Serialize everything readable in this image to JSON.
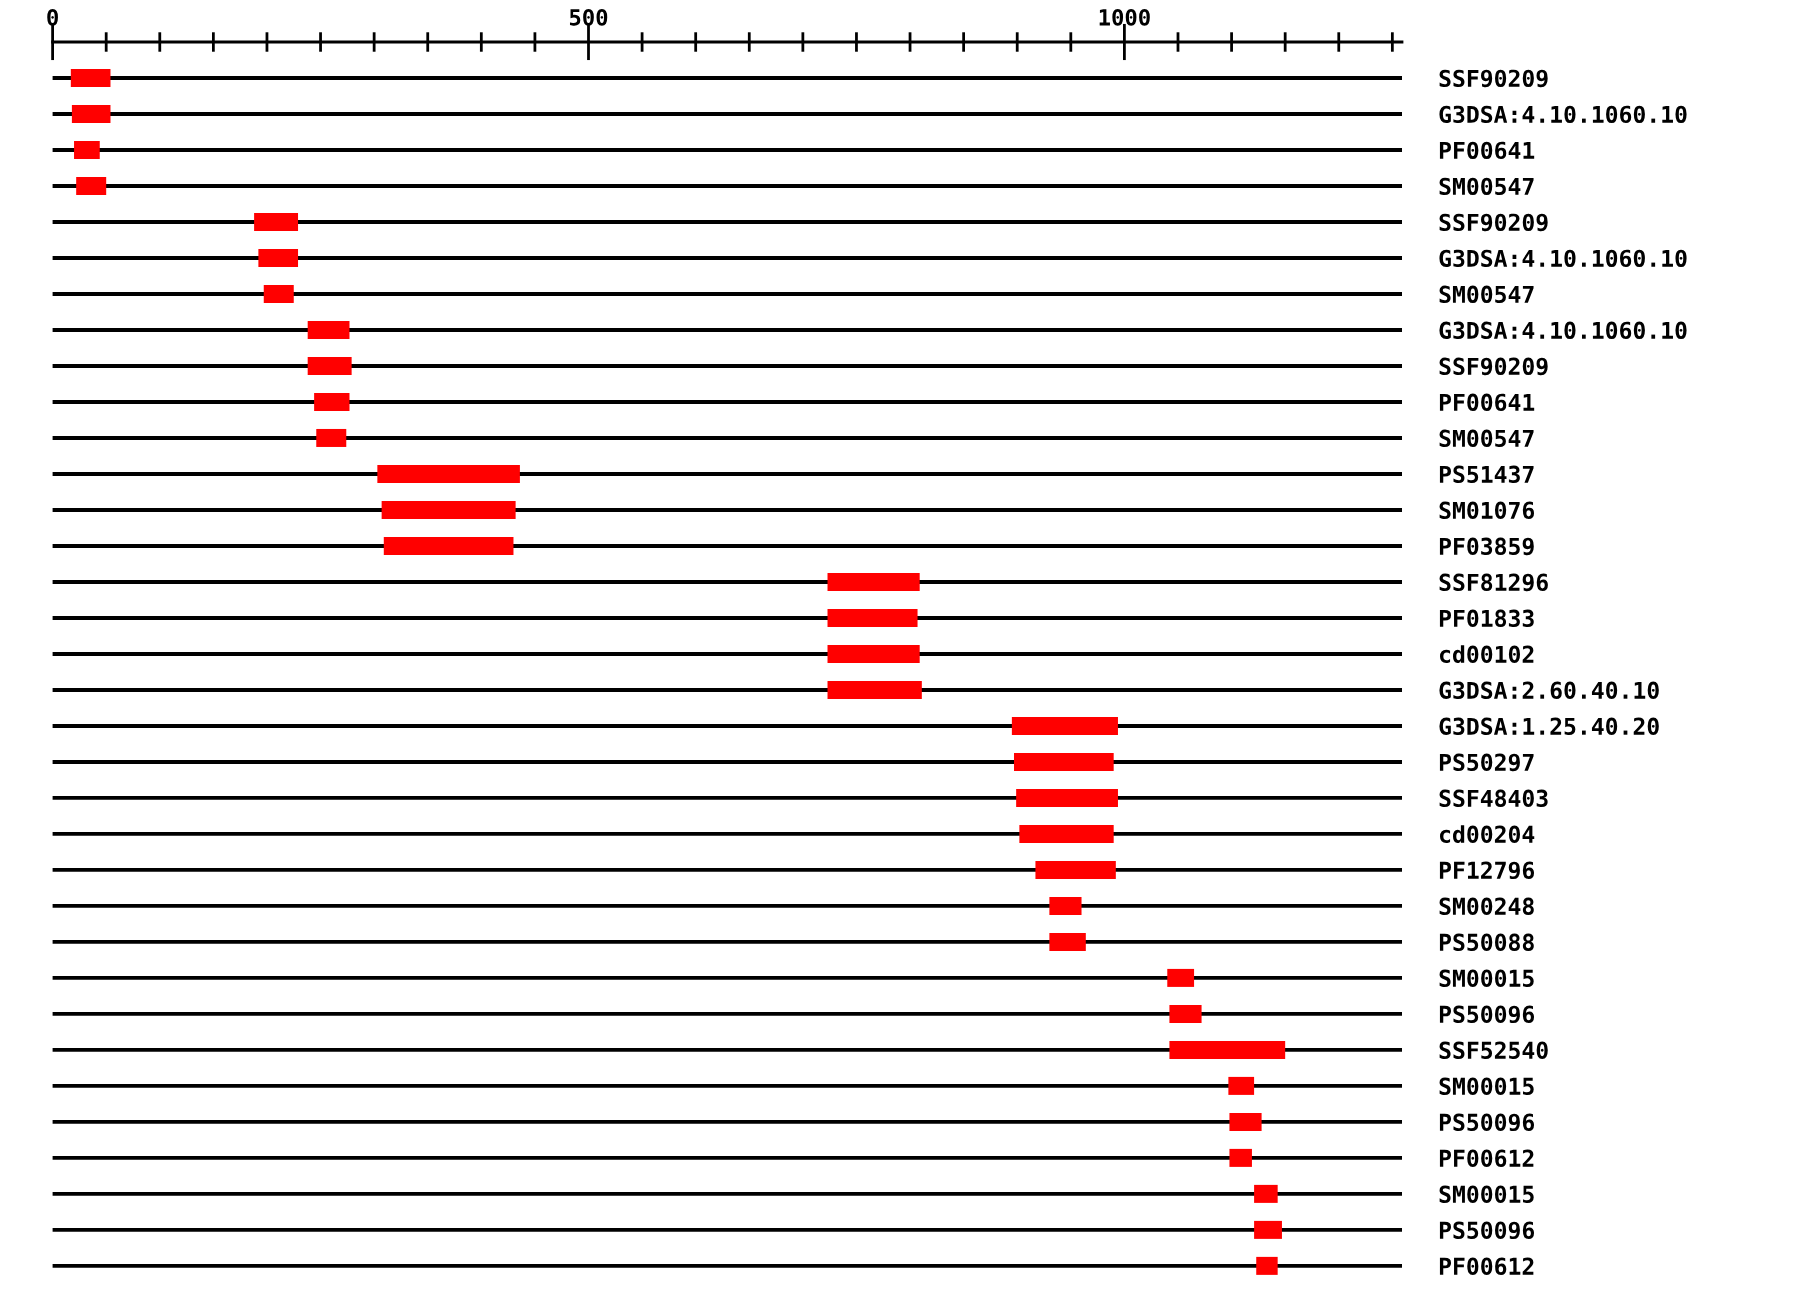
{
  "chart_data": {
    "type": "bar",
    "orientation": "horizontal",
    "color": "#ff0000",
    "grid": "y",
    "categories": [
      "SSF90209",
      "G3DSA:4.10.1060.10",
      "PF00641",
      "SM00547",
      "SSF90209",
      "G3DSA:4.10.1060.10",
      "SM00547",
      "G3DSA:4.10.1060.10",
      "SSF90209",
      "PF00641",
      "SM00547",
      "PS51437",
      "SM01076",
      "PF03859",
      "SSF81296",
      "PF01833",
      "cd00102",
      "G3DSA:2.60.40.10",
      "G3DSA:1.25.40.20",
      "PS50297",
      "SSF48403",
      "cd00204",
      "PF12796",
      "SM00248",
      "PS50088",
      "SM00015",
      "PS50096",
      "SSF52540",
      "SM00015",
      "PS50096",
      "PF00612",
      "SM00015",
      "PS50096",
      "PF00612"
    ],
    "base": [
      17,
      18,
      20,
      22,
      188,
      192,
      197,
      238,
      238,
      244,
      246,
      303,
      307,
      309,
      723,
      723,
      723,
      723,
      895,
      897,
      899,
      902,
      917,
      930,
      930,
      1040,
      1042,
      1042,
      1097,
      1098,
      1098,
      1121,
      1121,
      1123
    ],
    "values": [
      37,
      36,
      24,
      28,
      41,
      37,
      28,
      39,
      41,
      33,
      28,
      133,
      125,
      121,
      86,
      84,
      86,
      88,
      99,
      93,
      95,
      88,
      75,
      30,
      34,
      25,
      30,
      108,
      24,
      30,
      21,
      22,
      26,
      20
    ],
    "xlim": [
      0,
      1259
    ],
    "xticks": [
      0,
      {
        "value": 50,
        "label": null
      },
      {
        "value": 100,
        "label": null
      },
      {
        "value": 150,
        "label": null
      },
      {
        "value": 200,
        "label": null
      },
      {
        "value": 250,
        "label": null
      },
      {
        "value": 300,
        "label": null
      },
      {
        "value": 350,
        "label": null
      },
      {
        "value": 400,
        "label": null
      },
      {
        "value": 450,
        "label": null
      },
      500,
      {
        "value": 550,
        "label": null
      },
      {
        "value": 600,
        "label": null
      },
      {
        "value": 650,
        "label": null
      },
      {
        "value": 700,
        "label": null
      },
      {
        "value": 750,
        "label": null
      },
      {
        "value": 800,
        "label": null
      },
      {
        "value": 850,
        "label": null
      },
      {
        "value": 900,
        "label": null
      },
      {
        "value": 950,
        "label": null
      },
      1000,
      {
        "value": 1050,
        "label": null
      },
      {
        "value": 1100,
        "label": null
      },
      {
        "value": 1150,
        "label": null
      },
      {
        "value": 1200,
        "label": null
      },
      {
        "value": 1250,
        "label": null
      }
    ]
  }
}
